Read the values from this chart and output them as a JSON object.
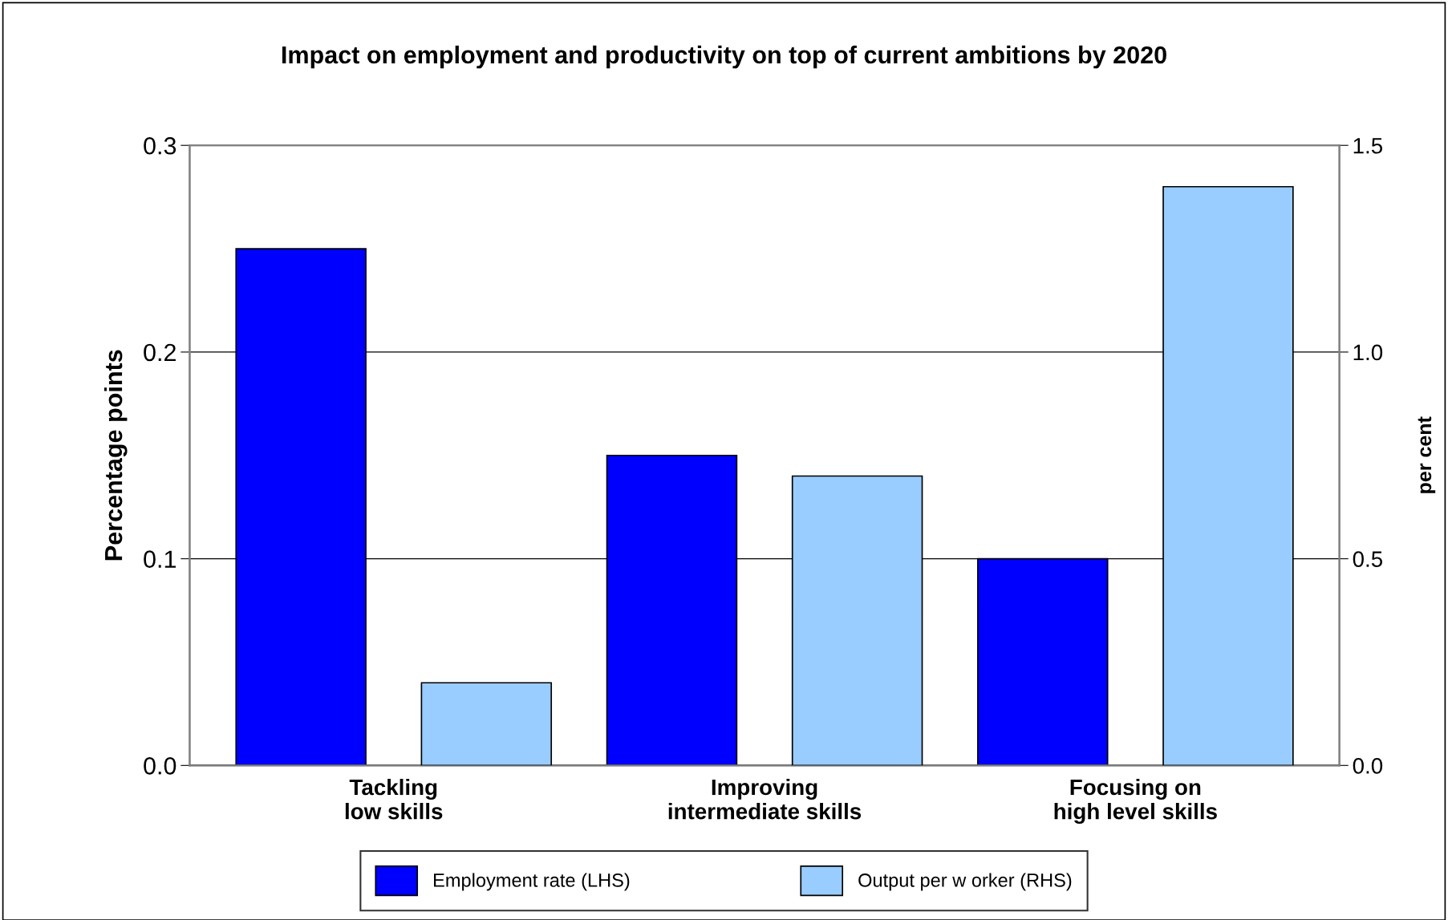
{
  "chart_data": {
    "type": "bar",
    "title": "Impact on employment and productivity on top of current ambitions by 2020",
    "categories": [
      "Tackling\nlow skills",
      "Improving\nintermediate skills",
      "Focusing on\nhigh level skills"
    ],
    "series": [
      {
        "name": "Employment rate (LHS)",
        "color": "#0000ff",
        "values": [
          0.25,
          0.15,
          0.1
        ]
      },
      {
        "name": "Output per w orker (RHS)",
        "color": "#99ccff",
        "values": [
          0.2,
          0.7,
          1.4
        ],
        "axis": "y2"
      }
    ],
    "ylabel": "Percentage points",
    "y2label": "per cent",
    "ylim": [
      0,
      0.3
    ],
    "yticks": [
      {
        "value": 0,
        "label": "0.0"
      },
      0.1,
      0.2,
      0.3
    ],
    "y2lim": [
      0,
      1.5
    ],
    "y2ticks": [
      {
        "value": 0,
        "label": "0.0"
      },
      0.5,
      {
        "value": 1,
        "label": "1.0"
      },
      1.5
    ],
    "grid": "y",
    "legend": "bottom"
  }
}
